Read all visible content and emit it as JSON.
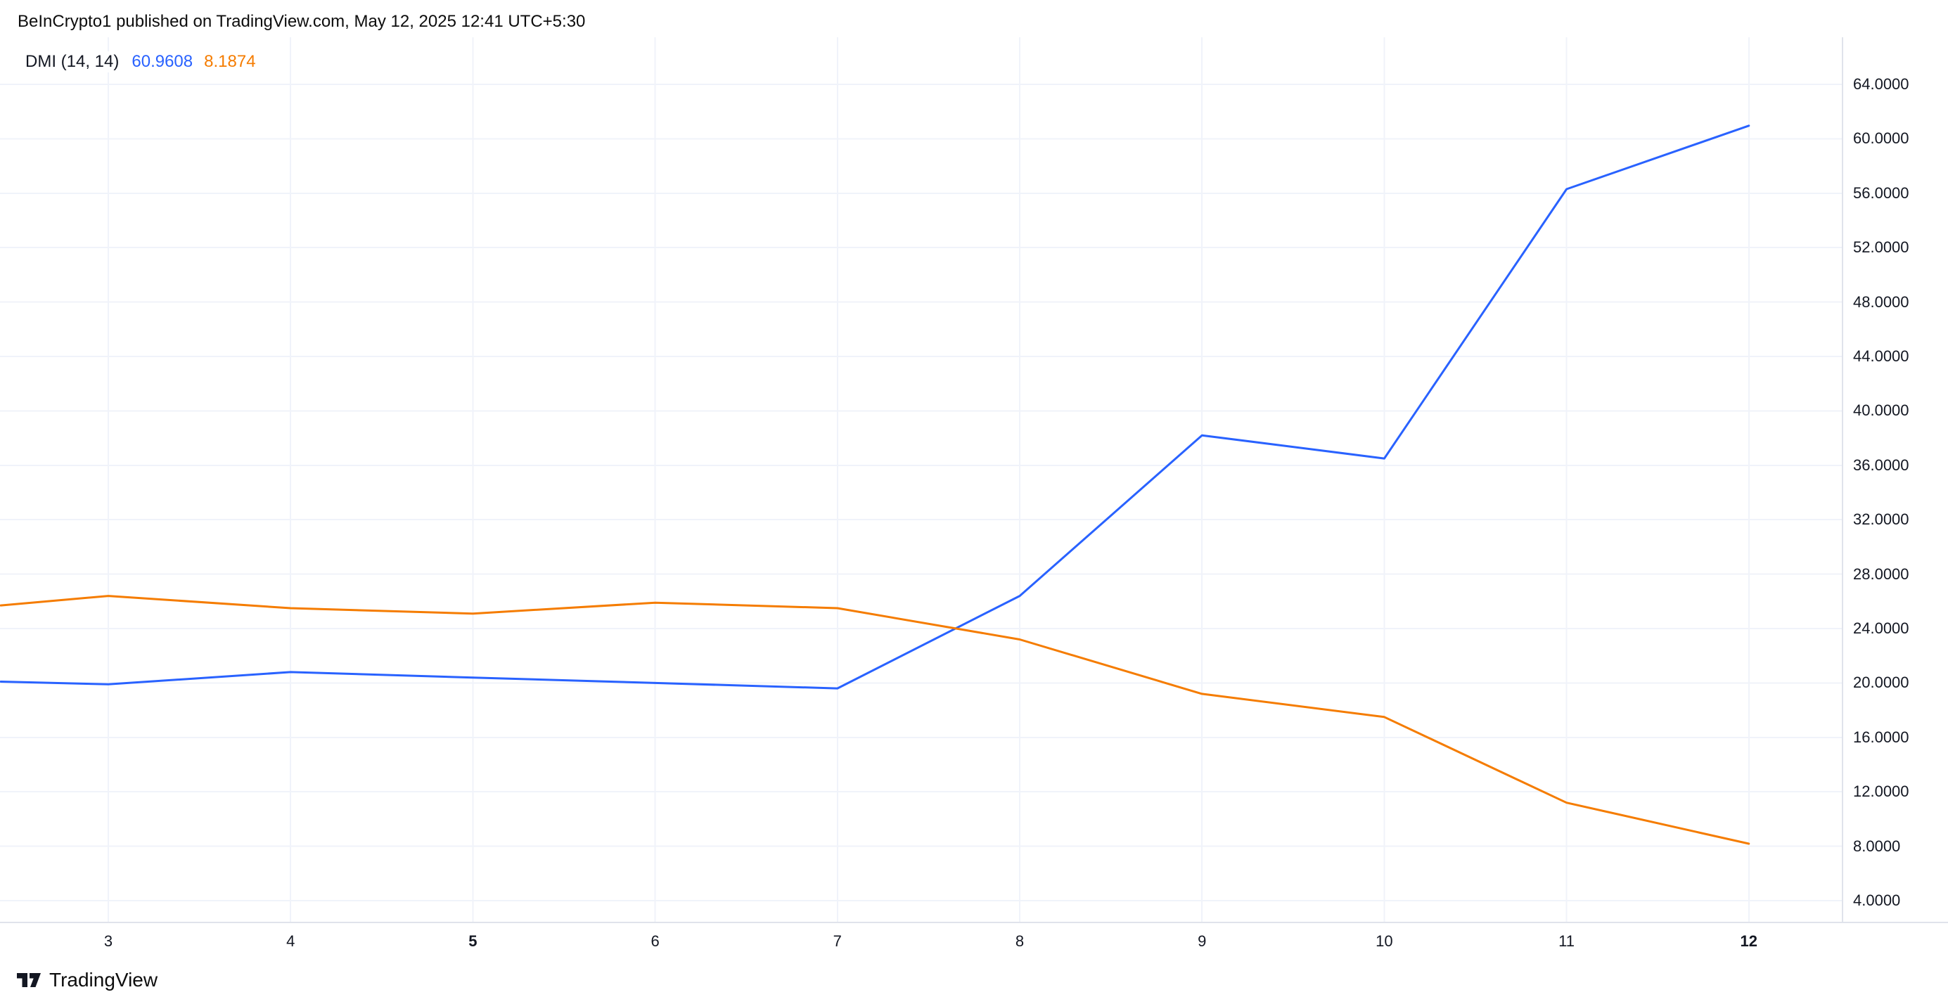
{
  "header": {
    "attribution": "BeInCrypto1 published on TradingView.com, May 12, 2025 12:41 UTC+5:30"
  },
  "legend": {
    "indicator": "DMI (14, 14)",
    "plus_di_value": "60.9608",
    "minus_di_value": "8.1874"
  },
  "footer": {
    "brand": "TradingView"
  },
  "colors": {
    "plus_di": "#2962FF",
    "minus_di": "#F57C00",
    "grid": "#F0F3FA",
    "axis_border": "#E0E3EB",
    "text": "#131722"
  },
  "chart_data": {
    "type": "line",
    "title": "DMI (14, 14)",
    "xlabel": "",
    "ylabel": "",
    "grid": true,
    "legend_position": "top-left",
    "ylim": [
      2.4,
      67.5
    ],
    "x": [
      2.41,
      3,
      4,
      5,
      6,
      7,
      8,
      9,
      10,
      11,
      12
    ],
    "series": [
      {
        "name": "+DI",
        "key": "plus_di",
        "values": [
          20.1,
          19.9,
          20.8,
          20.4,
          20.0,
          19.6,
          26.4,
          38.2,
          36.5,
          56.3,
          60.9608
        ]
      },
      {
        "name": "-DI",
        "key": "minus_di",
        "values": [
          25.7,
          26.4,
          25.5,
          25.1,
          25.9,
          25.5,
          23.2,
          19.2,
          17.5,
          11.2,
          8.1874
        ]
      }
    ],
    "x_ticks": [
      {
        "label": "3",
        "value": 3,
        "bold": false
      },
      {
        "label": "4",
        "value": 4,
        "bold": false
      },
      {
        "label": "5",
        "value": 5,
        "bold": true
      },
      {
        "label": "6",
        "value": 6,
        "bold": false
      },
      {
        "label": "7",
        "value": 7,
        "bold": false
      },
      {
        "label": "8",
        "value": 8,
        "bold": false
      },
      {
        "label": "9",
        "value": 9,
        "bold": false
      },
      {
        "label": "10",
        "value": 10,
        "bold": false
      },
      {
        "label": "11",
        "value": 11,
        "bold": false
      },
      {
        "label": "12",
        "value": 12,
        "bold": true
      }
    ],
    "y_ticks": [
      {
        "label": "64.0000",
        "value": 64
      },
      {
        "label": "60.0000",
        "value": 60
      },
      {
        "label": "56.0000",
        "value": 56
      },
      {
        "label": "52.0000",
        "value": 52
      },
      {
        "label": "48.0000",
        "value": 48
      },
      {
        "label": "44.0000",
        "value": 44
      },
      {
        "label": "40.0000",
        "value": 40
      },
      {
        "label": "36.0000",
        "value": 36
      },
      {
        "label": "32.0000",
        "value": 32
      },
      {
        "label": "28.0000",
        "value": 28
      },
      {
        "label": "24.0000",
        "value": 24
      },
      {
        "label": "20.0000",
        "value": 20
      },
      {
        "label": "16.0000",
        "value": 16
      },
      {
        "label": "12.0000",
        "value": 12
      },
      {
        "label": "8.0000",
        "value": 8
      },
      {
        "label": "4.0000",
        "value": 4
      }
    ]
  }
}
